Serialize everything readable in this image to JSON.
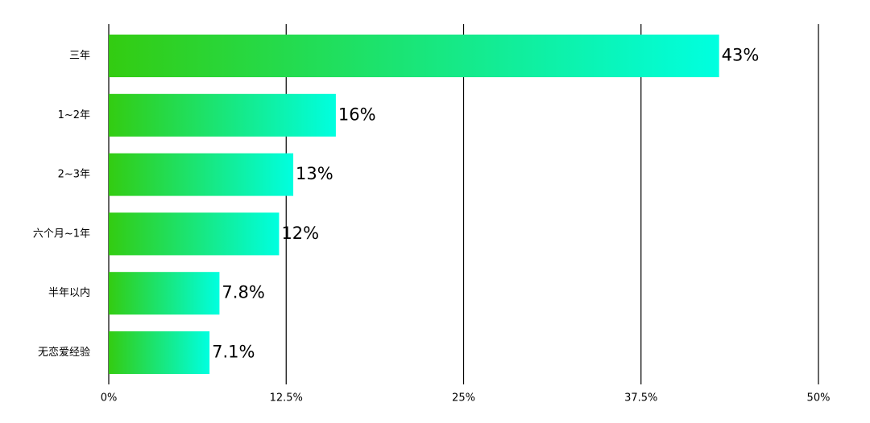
{
  "chart_data": {
    "type": "bar",
    "orientation": "horizontal",
    "categories": [
      "三年",
      "1~2年",
      "2~3年",
      "六个月~1年",
      "半年以内",
      "无恋爱经验"
    ],
    "values": [
      43,
      16,
      13,
      12,
      7.8,
      7.1
    ],
    "value_labels": [
      "43%",
      "16%",
      "13%",
      "12%",
      "7.8%",
      "7.1%"
    ],
    "colors": [
      "#33cc11",
      "#00ffe0"
    ],
    "xlim": [
      0,
      50
    ],
    "xticks": [
      {
        "value": 0,
        "label": "0%"
      },
      {
        "value": 12.5,
        "label": "12.5%"
      },
      {
        "value": 25,
        "label": "25%"
      },
      {
        "value": 37.5,
        "label": "37.5%"
      },
      {
        "value": 50,
        "label": "50%"
      }
    ],
    "grid": true
  }
}
